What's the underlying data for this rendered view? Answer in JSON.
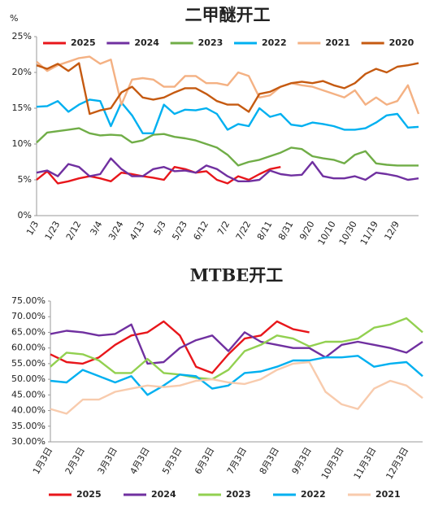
{
  "chart_data": [
    {
      "type": "line",
      "title": "二甲醚开工",
      "y_label": "%",
      "legend": "top",
      "grid": false,
      "categories": [
        "1/3",
        null,
        "1/23",
        null,
        "2/12",
        null,
        "3/4",
        null,
        "3/24",
        null,
        "4/13",
        null,
        "5/3",
        null,
        "5/23",
        null,
        "6/12",
        null,
        "7/2",
        null,
        "7/22",
        null,
        "8/11",
        null,
        "8/31",
        null,
        "9/20",
        null,
        "10/10",
        null,
        "10/30",
        null,
        "11/19",
        null,
        "12/9",
        null,
        null
      ],
      "ylim": [
        0,
        25
      ],
      "yticks": [
        {
          "value": 0,
          "label": "0%"
        },
        {
          "value": 5,
          "label": "5%"
        },
        {
          "value": 10,
          "label": "10%"
        },
        {
          "value": 15,
          "label": "15%"
        },
        {
          "value": 20,
          "label": "20%"
        },
        {
          "value": 25,
          "label": "25%"
        }
      ],
      "series": [
        {
          "name": "2025",
          "color": "#e8161b",
          "values": [
            5.0,
            6.2,
            4.5,
            4.8,
            5.2,
            5.5,
            5.2,
            4.8,
            6.0,
            5.8,
            5.5,
            5.3,
            5.0,
            6.8,
            6.5,
            6.0,
            6.2,
            5.0,
            4.5,
            5.5,
            5.0,
            5.8,
            6.5,
            6.8,
            null,
            null,
            null,
            null,
            null,
            null,
            null,
            null,
            null,
            null,
            null,
            null,
            null
          ]
        },
        {
          "name": "2024",
          "color": "#7030a0",
          "values": [
            6.0,
            6.3,
            5.5,
            7.2,
            6.8,
            5.5,
            5.8,
            8.0,
            6.5,
            5.5,
            5.5,
            6.5,
            6.8,
            6.2,
            6.3,
            6.0,
            7.0,
            6.5,
            5.5,
            4.8,
            4.8,
            5.0,
            6.3,
            5.8,
            5.6,
            5.7,
            7.5,
            5.5,
            5.2,
            5.2,
            5.5,
            5.0,
            6.0,
            5.8,
            5.5,
            5.0,
            5.2
          ]
        },
        {
          "name": "2023",
          "color": "#70ad47",
          "values": [
            10.2,
            11.6,
            11.8,
            12.0,
            12.2,
            11.5,
            11.2,
            11.3,
            11.2,
            10.2,
            10.5,
            11.3,
            11.4,
            11.0,
            10.8,
            10.5,
            10.0,
            9.5,
            8.5,
            7.0,
            7.5,
            7.8,
            8.3,
            8.8,
            9.5,
            9.3,
            8.3,
            8.0,
            7.8,
            7.3,
            8.5,
            9.0,
            7.3,
            7.1,
            7.0,
            7.0,
            7.0
          ]
        },
        {
          "name": "2022",
          "color": "#00b0f0",
          "values": [
            15.2,
            15.3,
            16.0,
            14.5,
            15.5,
            16.2,
            16.0,
            12.5,
            15.8,
            14.0,
            11.5,
            11.5,
            15.5,
            14.2,
            14.8,
            14.7,
            15.0,
            14.2,
            12.0,
            12.8,
            12.5,
            15.0,
            13.8,
            14.2,
            12.7,
            12.5,
            13.0,
            12.8,
            12.5,
            12.0,
            12.0,
            12.2,
            13.0,
            14.0,
            14.2,
            12.3,
            12.4
          ]
        },
        {
          "name": "2021",
          "color": "#f4b183",
          "values": [
            21.5,
            20.2,
            21.0,
            21.5,
            22.0,
            22.2,
            21.2,
            21.8,
            15.5,
            19.0,
            19.2,
            19.0,
            18.0,
            18.0,
            19.5,
            19.5,
            18.5,
            18.5,
            18.2,
            20.0,
            19.5,
            16.5,
            16.8,
            18.0,
            18.5,
            18.2,
            18.0,
            17.5,
            17.0,
            16.5,
            17.5,
            15.5,
            16.5,
            15.5,
            16.0,
            18.2,
            14.2
          ]
        },
        {
          "name": "2020",
          "color": "#c55a11",
          "values": [
            21.0,
            20.5,
            21.2,
            20.2,
            21.3,
            14.2,
            14.7,
            15.0,
            17.2,
            18.0,
            16.5,
            16.2,
            16.5,
            17.2,
            17.8,
            17.8,
            17.0,
            16.0,
            15.5,
            15.5,
            14.5,
            17.0,
            17.3,
            18.0,
            18.5,
            18.7,
            18.5,
            18.8,
            18.2,
            17.8,
            18.5,
            19.8,
            20.5,
            20.0,
            20.8,
            21.0,
            21.3
          ]
        }
      ]
    },
    {
      "type": "line",
      "title": "MTBE开工",
      "legend": "bottom",
      "grid": false,
      "categories": [
        "1月3日",
        null,
        "2月3日",
        null,
        "3月3日",
        null,
        "4月3日",
        null,
        "5月3日",
        null,
        "6月3日",
        null,
        "7月3日",
        null,
        "8月3日",
        null,
        "9月3日",
        null,
        "10月3日",
        null,
        "11月3日",
        null,
        "12月3日",
        null
      ],
      "ylim": [
        30,
        75
      ],
      "yticks": [
        {
          "value": 30,
          "label": "30.00%"
        },
        {
          "value": 35,
          "label": "35.00%"
        },
        {
          "value": 40,
          "label": "40.00%"
        },
        {
          "value": 45,
          "label": "45.00%"
        },
        {
          "value": 50,
          "label": "50.00%"
        },
        {
          "value": 55,
          "label": "55.00%"
        },
        {
          "value": 60,
          "label": "60.00%"
        },
        {
          "value": 65,
          "label": "65.00%"
        },
        {
          "value": 70,
          "label": "70.00%"
        },
        {
          "value": 75,
          "label": "75.00%"
        }
      ],
      "series": [
        {
          "name": "2025",
          "color": "#e8161b",
          "values": [
            58,
            55.5,
            55,
            57,
            61,
            64,
            65,
            68.5,
            64,
            54,
            52,
            58,
            63,
            64,
            68.5,
            66,
            65,
            null,
            null,
            null,
            null,
            null,
            null,
            null
          ]
        },
        {
          "name": "2024",
          "color": "#7030a0",
          "values": [
            64.5,
            65.5,
            65,
            64,
            64.5,
            67.5,
            55,
            55.5,
            60,
            62.5,
            64,
            59,
            65,
            62,
            61,
            60,
            60,
            57,
            61,
            62,
            61,
            60,
            58.5,
            62
          ]
        },
        {
          "name": "2023",
          "color": "#92d050",
          "values": [
            54,
            58.5,
            58,
            56,
            52,
            52,
            56.5,
            52,
            51.5,
            50.5,
            50,
            53,
            59,
            61,
            64,
            63,
            60.5,
            62,
            62,
            63,
            66.5,
            67.5,
            69.5,
            65
          ]
        },
        {
          "name": "2022",
          "color": "#00b0f0",
          "values": [
            49.5,
            49,
            53,
            51,
            49,
            51,
            45,
            48,
            51.5,
            51,
            47,
            48,
            52,
            52.5,
            54,
            56,
            56,
            57,
            57,
            57.5,
            54,
            55,
            55.5,
            51
          ]
        },
        {
          "name": "2021",
          "color": "#f8cbad",
          "values": [
            40.5,
            39,
            43.5,
            43.5,
            46,
            47,
            48,
            47.5,
            48,
            49.5,
            50,
            49,
            48.5,
            50,
            53,
            55,
            55.5,
            46,
            42,
            40.5,
            47,
            49.5,
            48,
            44
          ]
        }
      ]
    }
  ]
}
